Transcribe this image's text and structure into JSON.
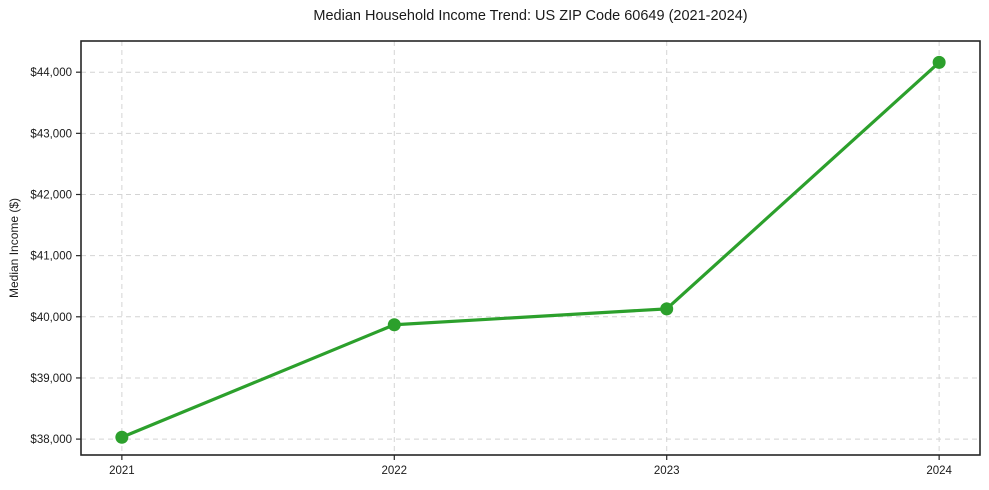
{
  "chart_data": {
    "type": "line",
    "title": "Median Household Income Trend: US ZIP Code 60649 (2021-2024)",
    "xlabel": "",
    "ylabel": "Median Income ($)",
    "categories": [
      2021,
      2022,
      2023,
      2024
    ],
    "series": [
      {
        "name": "Median Household Income",
        "values": [
          38030,
          39870,
          40130,
          44160
        ]
      }
    ],
    "yticks": [
      38000,
      39000,
      40000,
      41000,
      42000,
      43000,
      44000
    ],
    "ytick_labels": [
      "$38,000",
      "$39,000",
      "$40,000",
      "$41,000",
      "$42,000",
      "$43,000",
      "$44,000"
    ],
    "xtick_labels": [
      "2021",
      "2022",
      "2023",
      "2024"
    ],
    "ylim": [
      37740,
      44510
    ],
    "xlim": [
      2020.85,
      2024.15
    ],
    "grid": true,
    "grid_style": "dashed",
    "legend": "none",
    "marker": "circle",
    "colors": {
      "line": "#2ca02c",
      "marker": "#2ca02c",
      "grid": "#d4d4d4",
      "text": "#1a1a1a",
      "frame": "#262626",
      "background": "#ffffff"
    }
  }
}
